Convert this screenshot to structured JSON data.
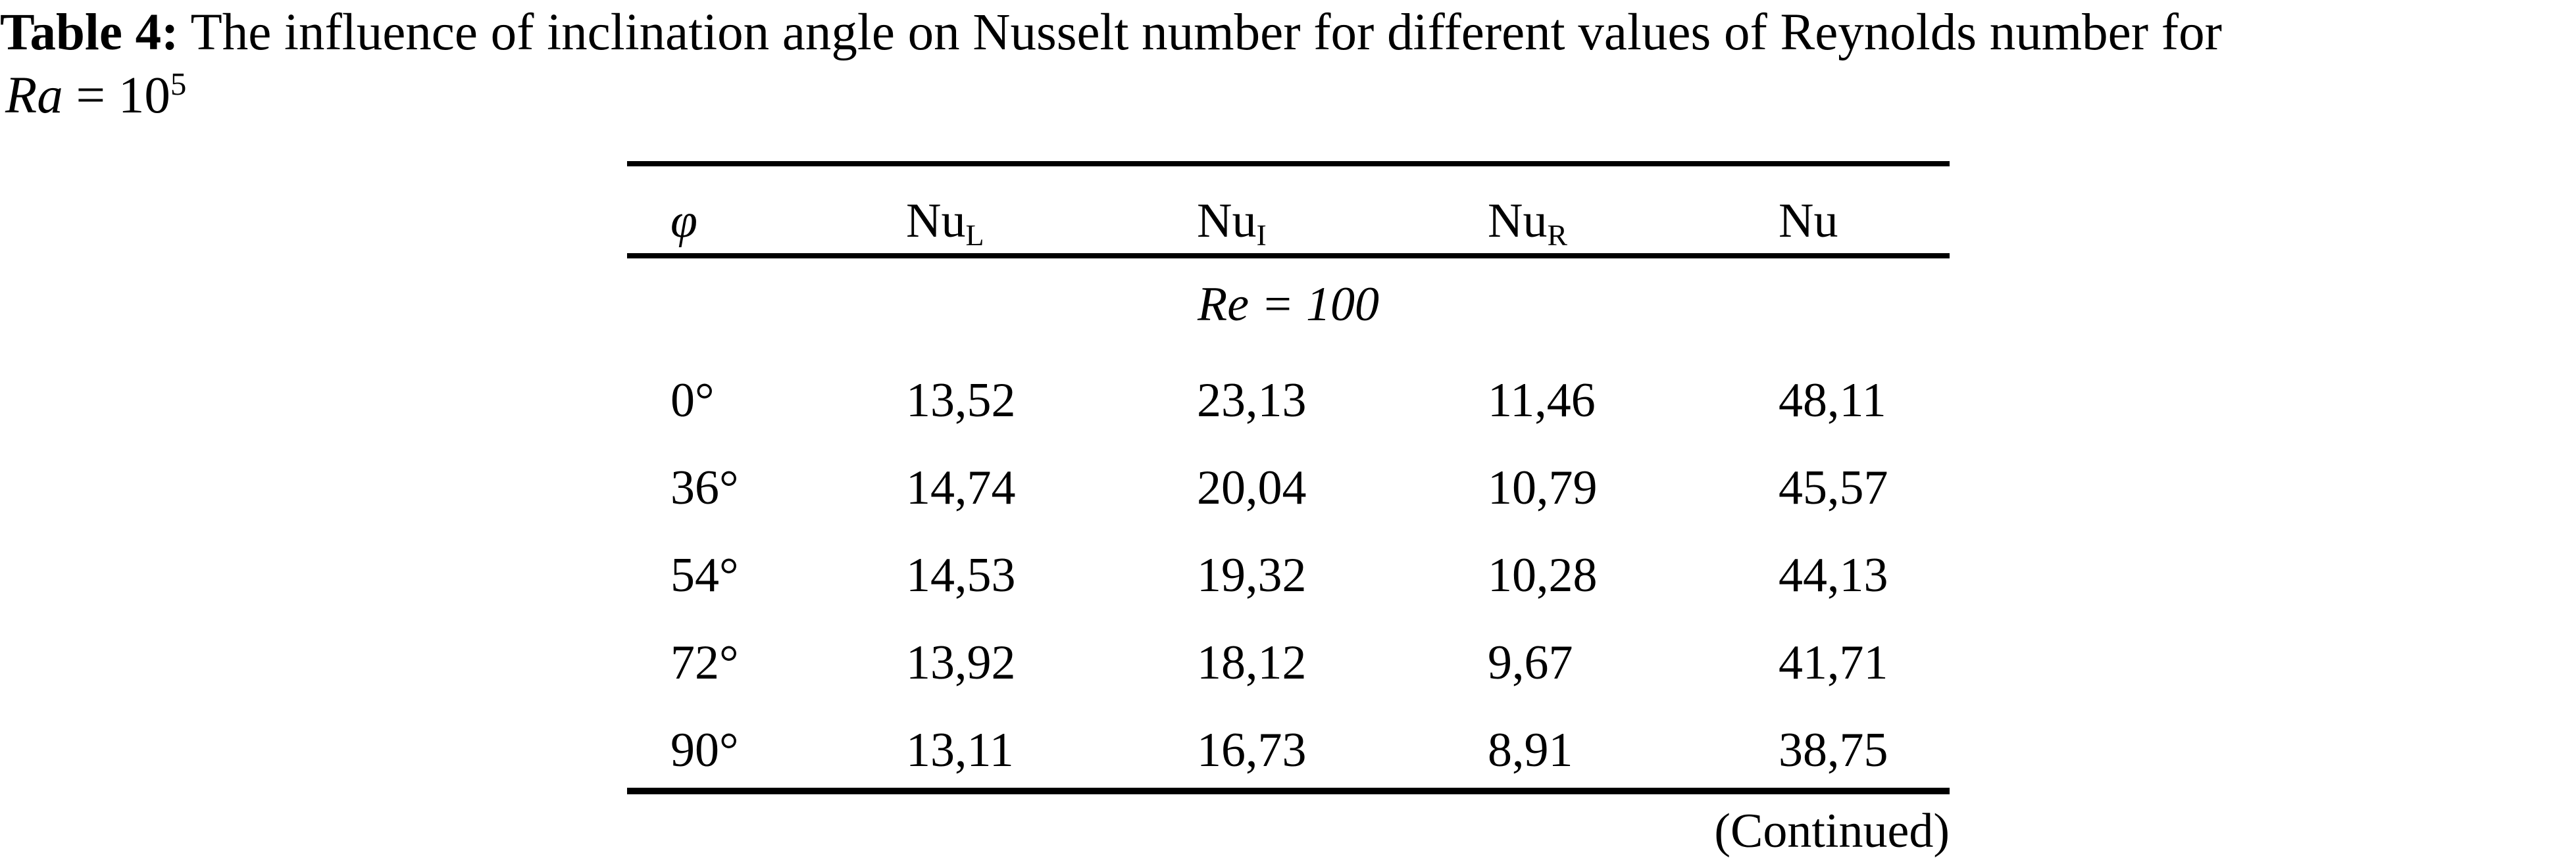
{
  "caption": {
    "label": "Table 4:",
    "text": "The influence of inclination angle on Nusselt number for different values of Reynolds number for",
    "ra_symbol": "Ra",
    "equals_base": "= 10",
    "exponent": "5"
  },
  "table": {
    "columns": [
      {
        "base": "φ",
        "sub": ""
      },
      {
        "base": "Nu",
        "sub": "L"
      },
      {
        "base": "Nu",
        "sub": "I"
      },
      {
        "base": "Nu",
        "sub": "R"
      },
      {
        "base": "Nu",
        "sub": ""
      }
    ],
    "group_label": "Re = 100",
    "rows": [
      {
        "phi": "0°",
        "values": [
          "13,52",
          "23,13",
          "11,46",
          "48,11"
        ]
      },
      {
        "phi": "36°",
        "values": [
          "14,74",
          "20,04",
          "10,79",
          "45,57"
        ]
      },
      {
        "phi": "54°",
        "values": [
          "14,53",
          "19,32",
          "10,28",
          "44,13"
        ]
      },
      {
        "phi": "72°",
        "values": [
          "13,92",
          "18,12",
          "9,67",
          "41,71"
        ]
      },
      {
        "phi": "90°",
        "values": [
          "13,11",
          "16,73",
          "8,91",
          "38,75"
        ]
      }
    ],
    "continued_note": "(Continued)"
  }
}
